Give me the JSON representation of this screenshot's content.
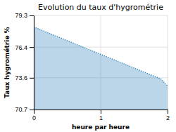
{
  "chart_data": {
    "type": "area",
    "title": "Evolution du taux d'hygrométrie",
    "xlabel": "heure par heure",
    "ylabel": "Taux hygrométrie %",
    "x": [
      0,
      0.1,
      0.2,
      0.3,
      0.4,
      0.5,
      0.6,
      0.7,
      0.8,
      0.9,
      1.0,
      1.1,
      1.2,
      1.3,
      1.4,
      1.5,
      1.6,
      1.7,
      1.8,
      1.9,
      2.0
    ],
    "values": [
      78.25,
      78.0,
      77.75,
      77.5,
      77.25,
      77.0,
      76.75,
      76.5,
      76.25,
      76.0,
      75.75,
      75.5,
      75.25,
      75.0,
      74.75,
      74.5,
      74.25,
      74.0,
      73.75,
      73.5,
      72.85
    ],
    "xlim": [
      0,
      2
    ],
    "ylim": [
      70.7,
      79.3
    ],
    "xticks": [
      0,
      1,
      2
    ],
    "yticks": [
      70.7,
      73.6,
      76.4,
      79.3
    ],
    "grid": true,
    "line_style": "dotted"
  }
}
